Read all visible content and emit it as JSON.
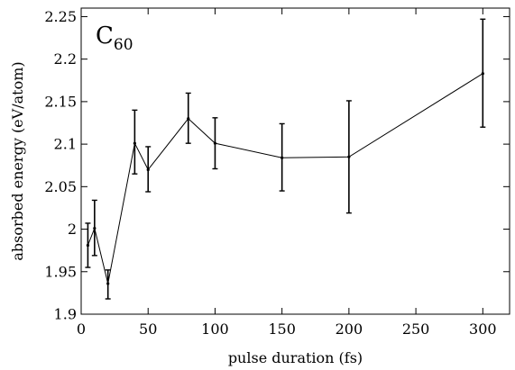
{
  "chart_data": {
    "type": "line",
    "title": "",
    "annotation": {
      "main": "C",
      "sub": "60"
    },
    "xlabel": "pulse duration (fs)",
    "ylabel": "absorbed energy (eV/atom)",
    "xlim": [
      0,
      320
    ],
    "ylim": [
      1.9,
      2.26
    ],
    "xticks": [
      0,
      50,
      100,
      150,
      200,
      250,
      300
    ],
    "xtick_labels": [
      "0",
      "50",
      "100",
      "150",
      "200",
      "250",
      "300"
    ],
    "yticks": [
      1.9,
      1.95,
      2.0,
      2.05,
      2.1,
      2.15,
      2.2,
      2.25
    ],
    "ytick_labels": [
      "1.9",
      "1.95",
      "2",
      "2.05",
      "2.1",
      "2.15",
      "2.2",
      "2.25"
    ],
    "grid": false,
    "legend": "none",
    "series": [
      {
        "x": [
          5,
          10,
          20,
          40,
          50,
          80,
          100,
          150,
          200,
          300
        ],
        "y": [
          1.981,
          2.001,
          1.936,
          2.101,
          2.07,
          2.13,
          2.101,
          2.084,
          2.085,
          2.183
        ],
        "yerr_low": [
          1.955,
          1.969,
          1.918,
          2.065,
          2.044,
          2.101,
          2.071,
          2.045,
          2.019,
          2.12
        ],
        "yerr_high": [
          2.007,
          2.034,
          1.952,
          2.14,
          2.097,
          2.16,
          2.131,
          2.124,
          2.151,
          2.247
        ]
      }
    ]
  }
}
